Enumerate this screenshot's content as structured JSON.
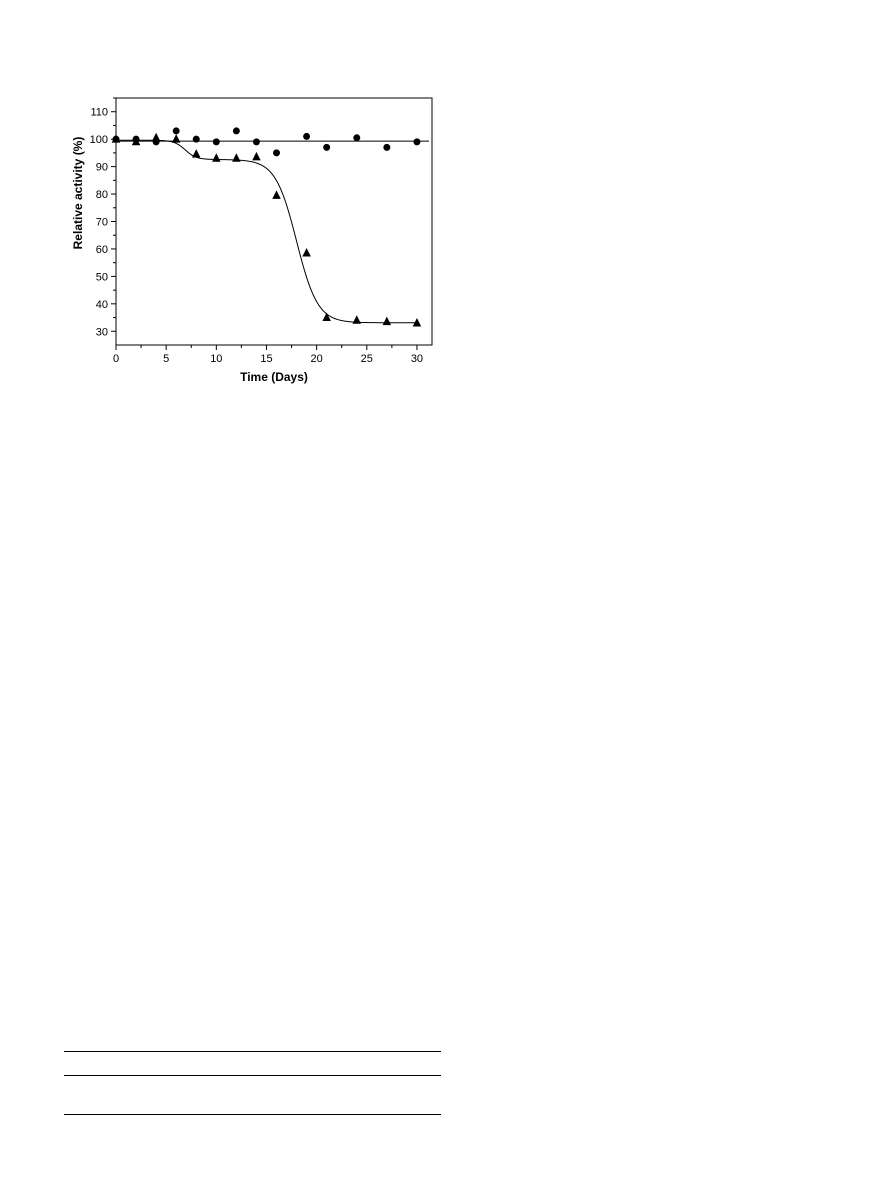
{
  "chart_data": {
    "type": "scatter",
    "xlabel": "Time (Days)",
    "ylabel": "Relative activity (%)",
    "xlim": [
      0,
      31.5
    ],
    "ylim": [
      25,
      115
    ],
    "xticks": [
      0,
      5,
      10,
      15,
      20,
      25,
      30
    ],
    "yticks": [
      30,
      40,
      50,
      60,
      70,
      80,
      90,
      100,
      110
    ],
    "grid": false,
    "legend": "none",
    "series": [
      {
        "marker": "circle",
        "fit": "horizontal-line",
        "fit_value": 99.3,
        "x": [
          0,
          2,
          4,
          6,
          8,
          10,
          12,
          14,
          16,
          19,
          21,
          24,
          27,
          30
        ],
        "y": [
          100,
          100,
          99,
          103,
          100,
          99,
          103,
          99,
          95,
          101,
          97,
          100.5,
          97,
          99
        ]
      },
      {
        "marker": "triangle",
        "fit": "smooth-curve",
        "x": [
          0,
          2,
          4,
          6,
          8,
          10,
          12,
          14,
          16,
          19,
          21,
          24,
          27,
          30
        ],
        "y": [
          100,
          99,
          100.5,
          100,
          94.5,
          93,
          93,
          93.5,
          79.5,
          58.5,
          35,
          34,
          33.5,
          33
        ]
      }
    ]
  }
}
